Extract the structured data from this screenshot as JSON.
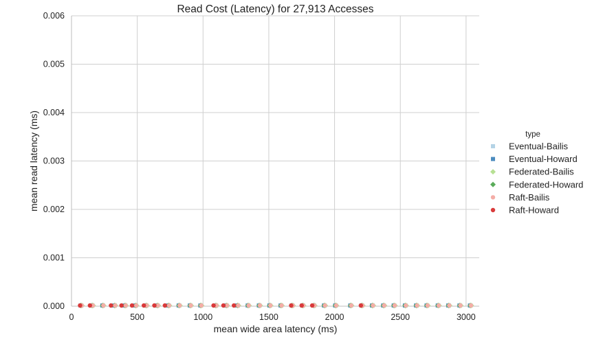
{
  "chart_data": {
    "type": "scatter",
    "title": "Read Cost (Latency) for 27,913 Accesses",
    "xlabel": "mean wide area latency (ms)",
    "ylabel": "mean read latency (ms)",
    "xlim": [
      0,
      3100
    ],
    "ylim": [
      0,
      0.006
    ],
    "xticks": [
      0,
      500,
      1000,
      1500,
      2000,
      2500,
      3000
    ],
    "xtick_labels": [
      "0",
      "500",
      "1000",
      "1500",
      "2000",
      "2500",
      "3000"
    ],
    "yticks": [
      0,
      0.001,
      0.002,
      0.003,
      0.004,
      0.005,
      0.006
    ],
    "ytick_labels": [
      "0.000",
      "0.001",
      "0.002",
      "0.003",
      "0.004",
      "0.005",
      "0.006"
    ],
    "grid": true,
    "legend": {
      "title": "type",
      "placement": "right"
    },
    "series": [
      {
        "name": "Eventual-Bailis",
        "marker": "square",
        "color": "#b4d3e6",
        "x": [
          75,
          160,
          240,
          330,
          410,
          490,
          570,
          655,
          740,
          820,
          905,
          985,
          1100,
          1180,
          1265,
          1345,
          1430,
          1510,
          1595,
          1680,
          1760,
          1845,
          1925,
          2010,
          2125,
          2210,
          2290,
          2375,
          2455,
          2540,
          2625,
          2705,
          2790,
          2870,
          2955,
          3035
        ],
        "y": [
          0,
          0,
          0,
          0,
          0,
          0,
          0,
          0,
          0,
          0,
          0,
          0,
          0,
          0,
          0,
          0,
          0,
          0,
          0,
          0,
          0,
          0,
          0,
          0,
          0,
          0,
          0,
          0,
          0,
          0,
          0,
          0,
          0,
          0,
          0,
          0
        ]
      },
      {
        "name": "Eventual-Howard",
        "marker": "square",
        "color": "#4c8cbf",
        "x": [
          70,
          155,
          235,
          325,
          405,
          485,
          565,
          650,
          735,
          815,
          900,
          980,
          1095,
          1175,
          1260,
          1340,
          1425,
          1505,
          1590,
          1675,
          1755,
          1840,
          1920,
          2005,
          2120,
          2205,
          2285,
          2370,
          2450,
          2535,
          2620,
          2700,
          2785,
          2865,
          2950,
          3030
        ],
        "y": [
          0,
          0,
          0,
          0,
          0,
          0,
          0,
          0,
          0,
          0,
          0,
          0,
          0,
          0,
          0,
          0,
          0,
          0,
          0,
          0,
          0,
          0,
          0,
          0,
          0,
          0,
          0,
          0,
          0,
          0,
          0,
          0,
          0,
          0,
          0,
          0
        ]
      },
      {
        "name": "Federated-Bailis",
        "marker": "diamond",
        "color": "#b7e094",
        "x": [
          80,
          165,
          245,
          335,
          415,
          495,
          575,
          660,
          745,
          825,
          910,
          990,
          1105,
          1185,
          1270,
          1350,
          1435,
          1515,
          1600,
          1685,
          1765,
          1850,
          1930,
          2015,
          2130,
          2215,
          2295,
          2380,
          2460,
          2545,
          2630,
          2710,
          2795,
          2875,
          2960,
          3040
        ],
        "y": [
          0,
          0,
          0,
          0,
          0,
          0,
          0,
          0,
          0,
          0,
          0,
          0,
          0,
          0,
          0,
          0,
          0,
          0,
          0,
          0,
          0,
          0,
          0,
          0,
          0,
          0,
          0,
          0,
          0,
          0,
          0,
          0,
          0,
          0,
          0,
          0
        ]
      },
      {
        "name": "Federated-Howard",
        "marker": "diamond",
        "color": "#5aab5a",
        "x": [
          72,
          157,
          237,
          327,
          407,
          487,
          567,
          652,
          737,
          817,
          902,
          982,
          1097,
          1177,
          1262,
          1342,
          1427,
          1507,
          1592,
          1677,
          1757,
          1842,
          1922,
          2007,
          2122,
          2207,
          2287,
          2372,
          2452,
          2537,
          2622,
          2702,
          2787,
          2867,
          2952,
          3032
        ],
        "y": [
          0,
          0,
          0,
          0,
          0,
          0,
          0,
          0,
          0,
          0,
          0,
          0,
          0,
          0,
          0,
          0,
          0,
          0,
          0,
          0,
          0,
          0,
          0,
          0,
          0,
          0,
          0,
          0,
          0,
          0,
          0,
          0,
          0,
          0,
          0,
          0
        ]
      },
      {
        "name": "Raft-Bailis",
        "marker": "circle",
        "color": "#f4ada7",
        "x": [
          78,
          162,
          242,
          332,
          412,
          492,
          572,
          657,
          742,
          822,
          907,
          987,
          1102,
          1182,
          1267,
          1347,
          1432,
          1512,
          1597,
          1682,
          1762,
          1847,
          1927,
          2012,
          2127,
          2212,
          2292,
          2377,
          2457,
          2542,
          2627,
          2707,
          2792,
          2872,
          2957,
          3037
        ],
        "y": [
          0,
          0,
          0,
          0,
          0,
          0,
          0,
          0,
          0,
          0,
          0,
          0,
          0,
          0,
          0,
          0,
          0,
          0,
          0,
          0,
          0,
          0,
          0,
          0,
          0,
          0,
          0,
          0,
          0,
          0,
          0,
          0,
          0,
          0,
          0,
          0
        ]
      },
      {
        "name": "Raft-Howard",
        "marker": "circle",
        "color": "#d93b3b",
        "x": [
          65,
          140,
          300,
          380,
          460,
          550,
          630,
          710,
          1080,
          1155,
          1235,
          1670,
          1750,
          1830,
          2200
        ],
        "y": [
          0,
          0,
          0,
          0,
          0,
          0,
          0,
          0,
          0,
          0,
          0,
          0,
          0,
          0,
          0
        ]
      }
    ]
  }
}
